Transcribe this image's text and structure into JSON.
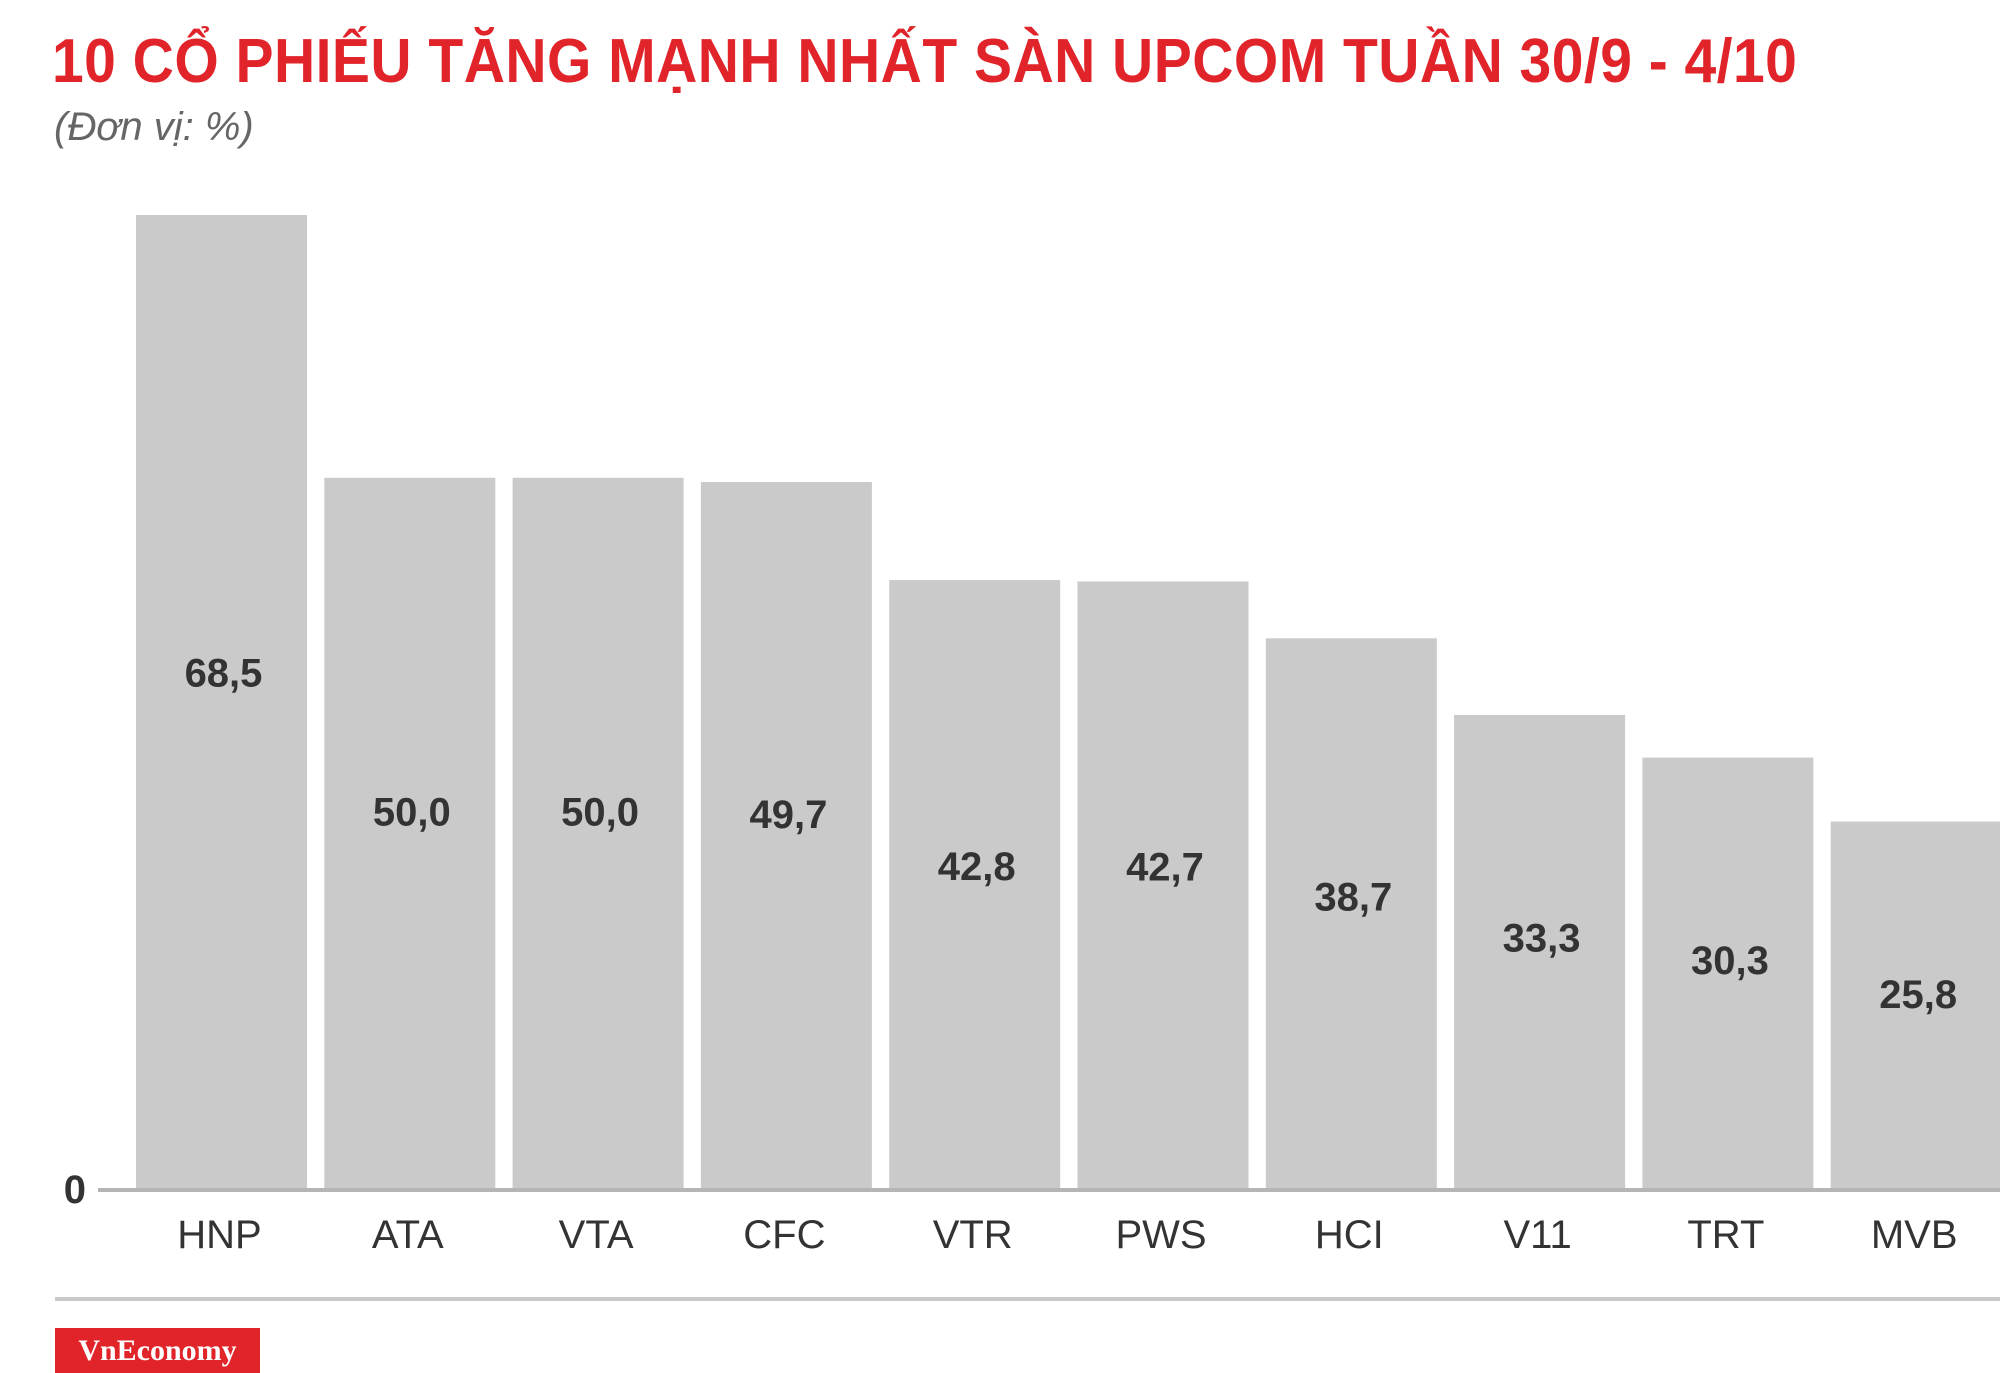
{
  "header": {
    "title": "10 CỔ PHIẾU TĂNG MẠNH NHẤT SÀN UPCOM TUẦN 30/9 - 4/10",
    "subtitle": "(Đơn vị: %)"
  },
  "footer": {
    "brand": "VnEconomy"
  },
  "colors": {
    "title": "#e1232a",
    "bar": "#cbcacb",
    "text": "#333333",
    "brand_bg": "#e1232a"
  },
  "chart_data": {
    "type": "bar",
    "title": "10 CỔ PHIẾU TĂNG MẠNH NHẤT SÀN UPCOM TUẦN 30/9 - 4/10",
    "subtitle": "(Đơn vị: %)",
    "categories": [
      "HNP",
      "ATA",
      "VTA",
      "CFC",
      "VTR",
      "PWS",
      "HCI",
      "V11",
      "TRT",
      "MVB"
    ],
    "values": [
      68.5,
      50.0,
      50.0,
      49.7,
      42.8,
      42.7,
      38.7,
      33.3,
      30.3,
      25.8
    ],
    "value_labels": [
      "68,5",
      "50,0",
      "50,0",
      "49,7",
      "42,8",
      "42,7",
      "38,7",
      "33,3",
      "30,3",
      "25,8"
    ],
    "y_tick_labels": [
      "0"
    ],
    "ylim": [
      0,
      68.5
    ],
    "grid": false,
    "legend": "none"
  }
}
